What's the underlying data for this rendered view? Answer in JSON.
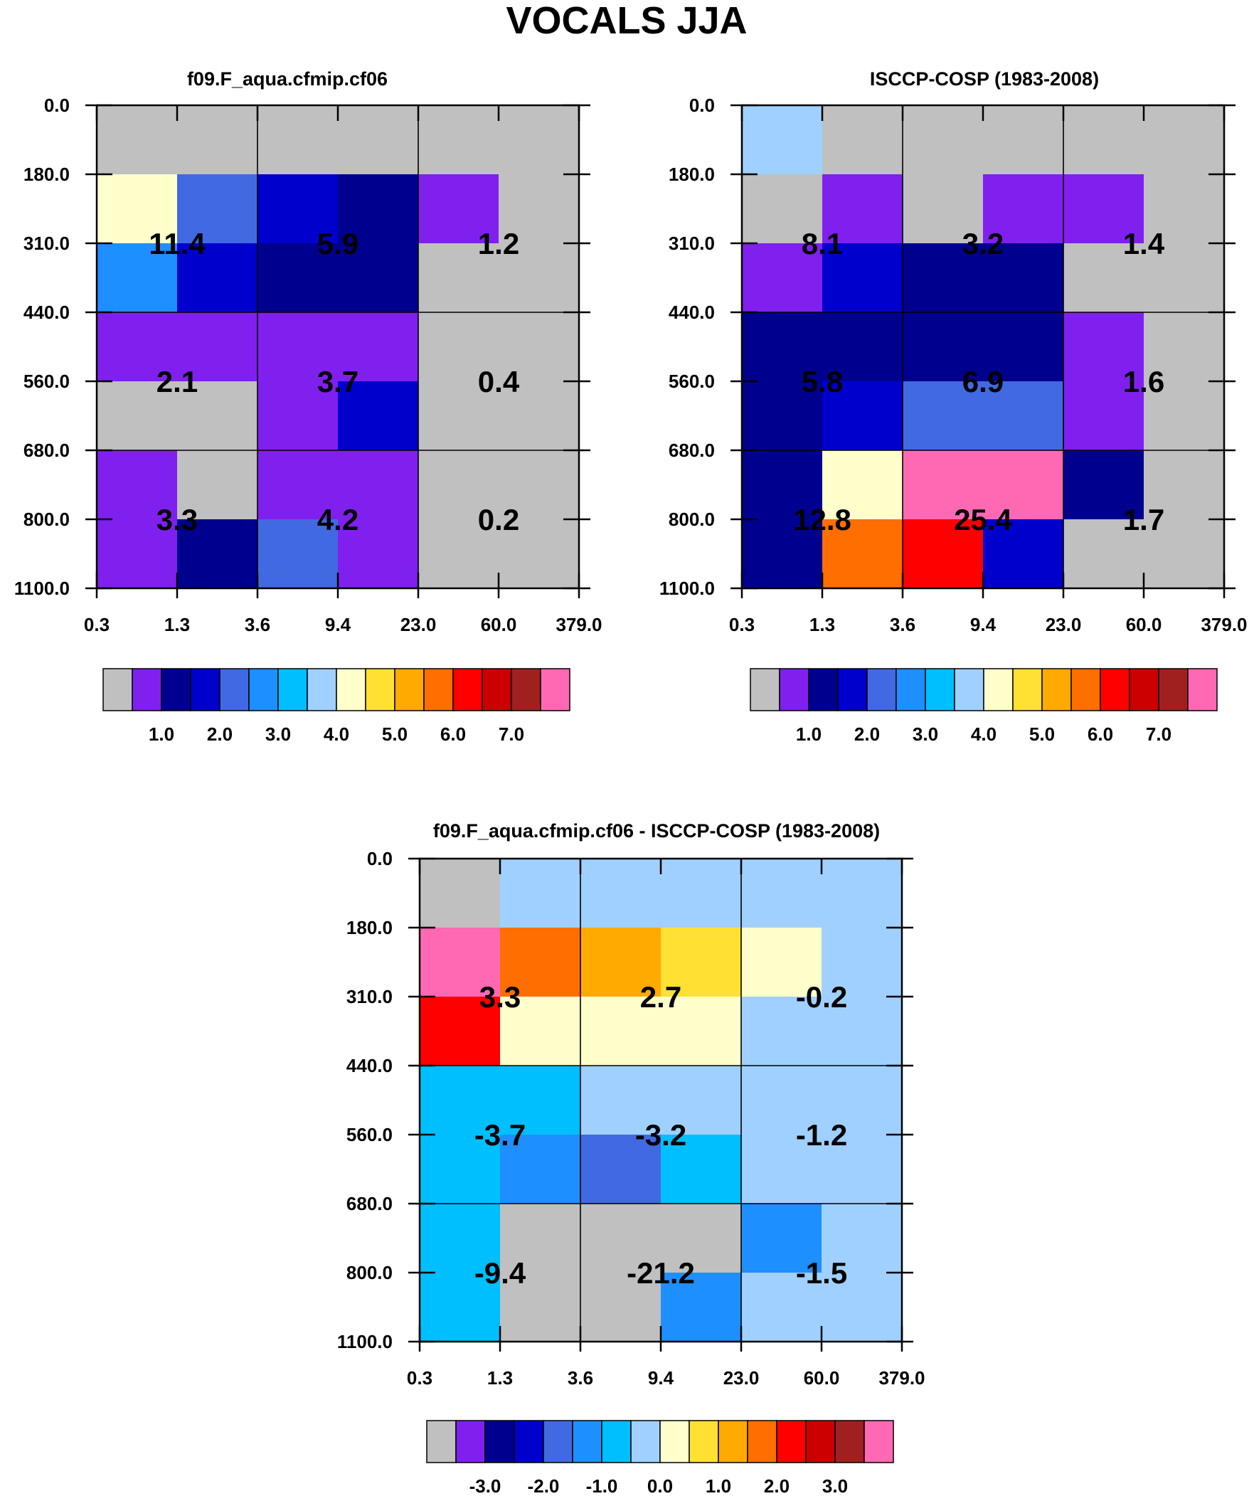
{
  "figure_title": "VOCALS JJA",
  "colors": {
    "palette": [
      "#c0c0c0",
      "#8020ee",
      "#00008f",
      "#0000cc",
      "#4169e1",
      "#1e8ffe",
      "#00bfff",
      "#a0d0ff",
      "#ffffcc",
      "#ffe033",
      "#ffaa00",
      "#ff6e00",
      "#ff0000",
      "#cc0000",
      "#a02020",
      "#ff69b4"
    ]
  },
  "chart_data": [
    {
      "type": "heatmap",
      "title": "f09.F_aqua.cfmip.cf06",
      "x_ticks": [
        "0.3",
        "1.3",
        "3.6",
        "9.4",
        "23.0",
        "60.0",
        "379.0"
      ],
      "y_ticks": [
        "0.0",
        "180.0",
        "310.0",
        "440.0",
        "560.0",
        "680.0",
        "800.0",
        "1100.0"
      ],
      "grid_color_index": [
        [
          0,
          0,
          0,
          0,
          0,
          0
        ],
        [
          8,
          4,
          3,
          2,
          1,
          0
        ],
        [
          5,
          3,
          2,
          2,
          0,
          0
        ],
        [
          1,
          1,
          1,
          1,
          0,
          0
        ],
        [
          0,
          0,
          1,
          3,
          0,
          0
        ],
        [
          1,
          0,
          1,
          1,
          0,
          0
        ],
        [
          1,
          2,
          4,
          1,
          0,
          0
        ]
      ],
      "box_values": [
        [
          "11.4",
          "5.9",
          "1.2"
        ],
        [
          "2.1",
          "3.7",
          "0.4"
        ],
        [
          "3.3",
          "4.2",
          "0.2"
        ]
      ],
      "colorbar": {
        "tick_labels": [
          "1.0",
          "2.0",
          "3.0",
          "4.0",
          "5.0",
          "6.0",
          "7.0"
        ]
      }
    },
    {
      "type": "heatmap",
      "title": "ISCCP-COSP (1983-2008)",
      "x_ticks": [
        "0.3",
        "1.3",
        "3.6",
        "9.4",
        "23.0",
        "60.0",
        "379.0"
      ],
      "y_ticks": [
        "0.0",
        "180.0",
        "310.0",
        "440.0",
        "560.0",
        "680.0",
        "800.0",
        "1100.0"
      ],
      "grid_color_index": [
        [
          7,
          0,
          0,
          0,
          0,
          0
        ],
        [
          0,
          1,
          0,
          1,
          1,
          0
        ],
        [
          1,
          3,
          2,
          2,
          0,
          0
        ],
        [
          2,
          2,
          2,
          2,
          1,
          0
        ],
        [
          2,
          3,
          4,
          4,
          1,
          0
        ],
        [
          2,
          8,
          15,
          15,
          2,
          0
        ],
        [
          2,
          11,
          12,
          3,
          0,
          0
        ]
      ],
      "box_values": [
        [
          "8.1",
          "3.2",
          "1.4"
        ],
        [
          "5.8",
          "6.9",
          "1.6"
        ],
        [
          "12.8",
          "25.4",
          "1.7"
        ]
      ],
      "colorbar": {
        "tick_labels": [
          "1.0",
          "2.0",
          "3.0",
          "4.0",
          "5.0",
          "6.0",
          "7.0"
        ]
      }
    },
    {
      "type": "heatmap",
      "title": "f09.F_aqua.cfmip.cf06 - ISCCP-COSP (1983-2008)",
      "x_ticks": [
        "0.3",
        "1.3",
        "3.6",
        "9.4",
        "23.0",
        "60.0",
        "379.0"
      ],
      "y_ticks": [
        "0.0",
        "180.0",
        "310.0",
        "440.0",
        "560.0",
        "680.0",
        "800.0",
        "1100.0"
      ],
      "grid_color_index": [
        [
          0,
          7,
          7,
          7,
          7,
          7
        ],
        [
          15,
          11,
          10,
          9,
          8,
          7
        ],
        [
          12,
          8,
          8,
          8,
          7,
          7
        ],
        [
          6,
          6,
          7,
          7,
          7,
          7
        ],
        [
          6,
          5,
          4,
          6,
          7,
          7
        ],
        [
          6,
          0,
          0,
          0,
          5,
          7
        ],
        [
          6,
          0,
          0,
          5,
          7,
          7
        ]
      ],
      "box_values": [
        [
          "3.3",
          "2.7",
          "-0.2"
        ],
        [
          "-3.7",
          "-3.2",
          "-1.2"
        ],
        [
          "-9.4",
          "-21.2",
          "-1.5"
        ]
      ],
      "colorbar": {
        "tick_labels": [
          "-3.0",
          "-2.0",
          "-1.0",
          "0.0",
          "1.0",
          "2.0",
          "3.0"
        ]
      }
    }
  ]
}
